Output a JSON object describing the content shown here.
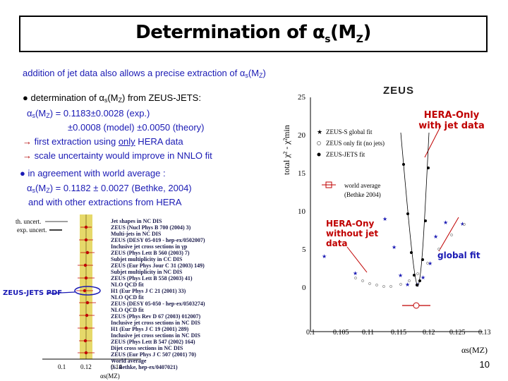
{
  "title": {
    "prefix": "Determination of ",
    "alpha": "α",
    "sub": "s",
    "open": "(M",
    "sub2": "Z",
    "close": ")"
  },
  "intro": {
    "text": "addition of jet data also allows a precise extraction of ",
    "sym": "α",
    "sub": "s",
    "mz": "(M",
    "z": "Z",
    "close": ")"
  },
  "bullet1": {
    "text": "● determination of ",
    "sym": "α",
    "sub": "s",
    "mz": "(M",
    "z": "Z",
    "tail": ") from ZEUS-JETS:"
  },
  "result": {
    "sym": "α",
    "sub": "s",
    "mz": "(M",
    "z": "Z",
    "val": ") = 0.1183±0.0028 (exp.)",
    "line2": "±0.0008 (model) ±0.0050 (theory)"
  },
  "arrow1": {
    "arrow": "→",
    "pre": " first extraction using ",
    "only": "only",
    "post": " HERA data"
  },
  "arrow2": {
    "arrow": "→",
    "text": " scale uncertainty would improve in NNLO fit"
  },
  "bullet2": {
    "text": "● in agreement with world average :"
  },
  "world": {
    "sym": "α",
    "sub": "s",
    "mz": "(M",
    "z": "Z",
    "val": ") = 0.1182 ± 0.0027 (Bethke, 2004)"
  },
  "other": "and with other extractions from HERA",
  "zeus_label": "ZEUS",
  "hera_only": {
    "line1": "HERA-Only",
    "line2": "with jet data"
  },
  "hera_onjet": {
    "line1": "HERA-Ony",
    "line2": "without jet",
    "line3": "data"
  },
  "global_fit": "global fit",
  "zeus_jets_pdf": "ZEUS-JETS PDF",
  "page_number": "10",
  "right_plot": {
    "ylabel": "total χ² - χ²min",
    "xlabel": "αs(MZ)",
    "yticks": [
      "0",
      "5",
      "10",
      "15",
      "20",
      "25"
    ],
    "xticks": [
      "0.1",
      "0.105",
      "0.11",
      "0.115",
      "0.12",
      "0.125",
      "0.13"
    ],
    "legend": [
      "ZEUS-S global fit",
      "ZEUS only fit (no jets)",
      "ZEUS-JETS fit"
    ],
    "world_avg": [
      "world average",
      "(Bethke 2004)"
    ]
  },
  "left_plot": {
    "th_uncert": "th. uncert.",
    "exp_uncert": "exp. uncert.",
    "entries": [
      "Jet shapes in NC DIS",
      "ZEUS (Nucl Phys B 700 (2004) 3)",
      "Multi-jets in NC DIS",
      "ZEUS (DESY 05-019 - hep-ex/0502007)",
      "Inclusive jet cross sections in γp",
      "ZEUS (Phys Lett B 560 (2003) 7)",
      "Subjet multiplicity in CC DIS",
      "ZEUS (Eur Phys Jour C 31 (2003) 149)",
      "Subjet multiplicity in NC DIS",
      "ZEUS (Phys Lett B 558 (2003) 41)",
      "NLO QCD fit",
      "H1 (Eur Phys J C 21 (2001) 33)",
      "NLO QCD fit",
      "ZEUS (DESY 05-050 - hep-ex/0503274)",
      "NLO QCD fit",
      "ZEUS (Phys Rev D 67 (2003) 012007)",
      "Inclusive jet cross sections in NC DIS",
      "H1 (Eur Phys J C 19 (2001) 289)",
      "Inclusive jet cross sections in NC DIS",
      "ZEUS (Phys Lett B 547 (2002) 164)",
      "Dijet cross sections in NC DIS",
      "ZEUS (Eur Phys J C 507 (2001) 70)",
      "World average",
      "(S. Bethke, hep-ex/0407021)"
    ],
    "xticks": [
      "0.1",
      "0.12",
      "0.14"
    ],
    "xlabel": "αs(MZ)"
  },
  "colors": {
    "blue": "#1a1ab4",
    "red": "#c00000",
    "band": "#e6d96a"
  }
}
